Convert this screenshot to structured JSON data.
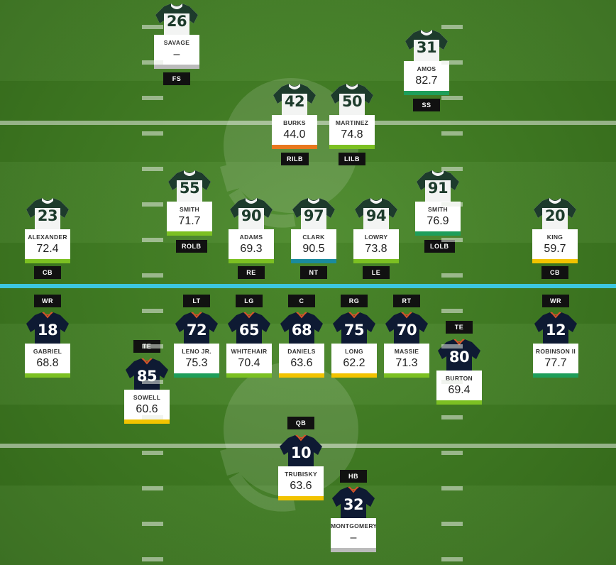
{
  "grade_colors": {
    "elite": "#1e9e5a",
    "high": "#7cc022",
    "good": "#7cc022",
    "average": "#f2c300",
    "below": "#e8781e",
    "teal": "#1a8b9e",
    "none": "#bbbbbb"
  },
  "jersey_colors": {
    "defense_body": "#f3f4f3",
    "defense_shoulder": "#1d3b2c",
    "defense_number": "#1d3b2c",
    "offense_body": "#0e1a33",
    "offense_collar": "#d4552a",
    "offense_number": "#ffffff"
  },
  "defense": [
    {
      "number": "26",
      "name": "SAVAGE",
      "grade": "–",
      "position": "FS",
      "tier": "none"
    },
    {
      "number": "31",
      "name": "AMOS",
      "grade": "82.7",
      "position": "SS",
      "tier": "elite"
    },
    {
      "number": "42",
      "name": "BURKS",
      "grade": "44.0",
      "position": "RILB",
      "tier": "below"
    },
    {
      "number": "50",
      "name": "MARTINEZ",
      "grade": "74.8",
      "position": "LILB",
      "tier": "high"
    },
    {
      "number": "55",
      "name": "SMITH",
      "grade": "71.7",
      "position": "ROLB",
      "tier": "high"
    },
    {
      "number": "91",
      "name": "SMITH",
      "grade": "76.9",
      "position": "LOLB",
      "tier": "elite"
    },
    {
      "number": "23",
      "name": "ALEXANDER",
      "grade": "72.4",
      "position": "CB",
      "tier": "high"
    },
    {
      "number": "90",
      "name": "ADAMS",
      "grade": "69.3",
      "position": "RE",
      "tier": "good"
    },
    {
      "number": "97",
      "name": "CLARK",
      "grade": "90.5",
      "position": "NT",
      "tier": "teal"
    },
    {
      "number": "94",
      "name": "LOWRY",
      "grade": "73.8",
      "position": "LE",
      "tier": "high"
    },
    {
      "number": "20",
      "name": "KING",
      "grade": "59.7",
      "position": "CB",
      "tier": "average"
    }
  ],
  "offense": [
    {
      "number": "18",
      "name": "GABRIEL",
      "grade": "68.8",
      "position": "WR",
      "tier": "good"
    },
    {
      "number": "72",
      "name": "LENO JR.",
      "grade": "75.3",
      "position": "LT",
      "tier": "elite"
    },
    {
      "number": "65",
      "name": "WHITEHAIR",
      "grade": "70.4",
      "position": "LG",
      "tier": "good"
    },
    {
      "number": "68",
      "name": "DANIELS",
      "grade": "63.6",
      "position": "C",
      "tier": "average"
    },
    {
      "number": "75",
      "name": "LONG",
      "grade": "62.2",
      "position": "RG",
      "tier": "average"
    },
    {
      "number": "70",
      "name": "MASSIE",
      "grade": "71.3",
      "position": "RT",
      "tier": "high"
    },
    {
      "number": "12",
      "name": "ROBINSON II",
      "grade": "77.7",
      "position": "WR",
      "tier": "elite"
    },
    {
      "number": "85",
      "name": "SOWELL",
      "grade": "60.6",
      "position": "TE",
      "tier": "average"
    },
    {
      "number": "80",
      "name": "BURTON",
      "grade": "69.4",
      "position": "TE",
      "tier": "good"
    },
    {
      "number": "10",
      "name": "TRUBISKY",
      "grade": "63.6",
      "position": "QB",
      "tier": "average"
    },
    {
      "number": "32",
      "name": "MONTGOMERY",
      "grade": "–",
      "position": "HB",
      "tier": "none"
    }
  ],
  "logo_icon": "helmet-logo-icon"
}
